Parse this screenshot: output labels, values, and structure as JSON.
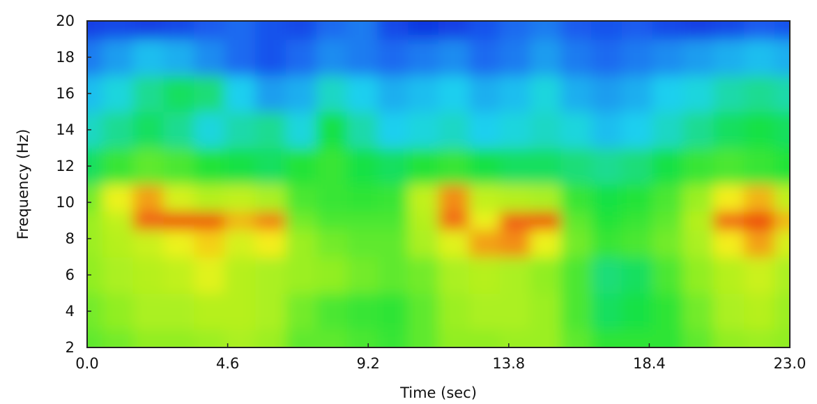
{
  "chart_data": {
    "type": "heatmap",
    "title": "",
    "xlabel": "Time (sec)",
    "ylabel": "Frequency (Hz)",
    "xlim": [
      0,
      23
    ],
    "ylim": [
      2,
      20
    ],
    "x_ticks": [
      0.0,
      4.6,
      9.2,
      13.8,
      18.4,
      23.0
    ],
    "x_tick_labels": [
      "0.0",
      "4.6",
      "9.2",
      "13.8",
      "18.4",
      "23.0"
    ],
    "y_ticks": [
      2,
      4,
      6,
      8,
      10,
      12,
      14,
      16,
      18,
      20
    ],
    "y_tick_labels": [
      "2",
      "4",
      "6",
      "8",
      "10",
      "12",
      "14",
      "16",
      "18",
      "20"
    ],
    "grid": false,
    "colormap": [
      "#0a1fd6",
      "#1a5cf0",
      "#1fd4ef",
      "#18e23a",
      "#a6f020",
      "#f4f21a",
      "#f26a12",
      "#e81010"
    ],
    "x": [
      0,
      1,
      2,
      3,
      4,
      5,
      6,
      7,
      8,
      9,
      10,
      11,
      12,
      13,
      14,
      15,
      16,
      17,
      18,
      19,
      20,
      21,
      22,
      23
    ],
    "y": [
      2,
      4,
      6,
      8,
      9,
      10,
      12,
      14,
      16,
      18,
      20
    ],
    "values": [
      [
        0.5,
        0.52,
        0.55,
        0.55,
        0.56,
        0.58,
        0.56,
        0.5,
        0.5,
        0.48,
        0.46,
        0.5,
        0.55,
        0.55,
        0.56,
        0.56,
        0.5,
        0.45,
        0.45,
        0.45,
        0.5,
        0.55,
        0.56,
        0.55
      ],
      [
        0.52,
        0.55,
        0.58,
        0.58,
        0.6,
        0.6,
        0.58,
        0.52,
        0.48,
        0.46,
        0.45,
        0.5,
        0.56,
        0.58,
        0.58,
        0.56,
        0.48,
        0.4,
        0.42,
        0.45,
        0.52,
        0.58,
        0.6,
        0.56
      ],
      [
        0.55,
        0.58,
        0.6,
        0.62,
        0.68,
        0.6,
        0.58,
        0.56,
        0.55,
        0.52,
        0.5,
        0.52,
        0.58,
        0.6,
        0.58,
        0.55,
        0.48,
        0.38,
        0.4,
        0.48,
        0.55,
        0.6,
        0.64,
        0.58
      ],
      [
        0.56,
        0.6,
        0.64,
        0.7,
        0.75,
        0.66,
        0.72,
        0.56,
        0.52,
        0.5,
        0.5,
        0.58,
        0.68,
        0.8,
        0.82,
        0.7,
        0.52,
        0.46,
        0.48,
        0.52,
        0.58,
        0.72,
        0.8,
        0.66
      ],
      [
        0.56,
        0.62,
        0.88,
        0.92,
        0.9,
        0.78,
        0.84,
        0.52,
        0.48,
        0.48,
        0.48,
        0.6,
        0.86,
        0.7,
        0.88,
        0.9,
        0.5,
        0.44,
        0.46,
        0.5,
        0.6,
        0.88,
        0.92,
        0.78
      ],
      [
        0.52,
        0.7,
        0.8,
        0.66,
        0.6,
        0.62,
        0.58,
        0.48,
        0.46,
        0.45,
        0.46,
        0.62,
        0.82,
        0.62,
        0.6,
        0.58,
        0.46,
        0.42,
        0.44,
        0.48,
        0.56,
        0.72,
        0.78,
        0.62
      ],
      [
        0.4,
        0.46,
        0.5,
        0.48,
        0.44,
        0.42,
        0.4,
        0.44,
        0.46,
        0.42,
        0.4,
        0.44,
        0.46,
        0.42,
        0.4,
        0.4,
        0.38,
        0.36,
        0.38,
        0.42,
        0.46,
        0.48,
        0.46,
        0.44
      ],
      [
        0.32,
        0.36,
        0.4,
        0.36,
        0.3,
        0.34,
        0.36,
        0.3,
        0.42,
        0.34,
        0.28,
        0.3,
        0.32,
        0.28,
        0.3,
        0.32,
        0.3,
        0.26,
        0.28,
        0.32,
        0.36,
        0.4,
        0.42,
        0.4
      ],
      [
        0.26,
        0.3,
        0.36,
        0.4,
        0.38,
        0.28,
        0.22,
        0.24,
        0.32,
        0.28,
        0.24,
        0.26,
        0.28,
        0.24,
        0.26,
        0.3,
        0.24,
        0.22,
        0.24,
        0.28,
        0.3,
        0.34,
        0.36,
        0.34
      ],
      [
        0.18,
        0.22,
        0.26,
        0.24,
        0.2,
        0.16,
        0.12,
        0.16,
        0.2,
        0.18,
        0.16,
        0.18,
        0.2,
        0.16,
        0.18,
        0.22,
        0.18,
        0.16,
        0.18,
        0.2,
        0.22,
        0.24,
        0.26,
        0.24
      ],
      [
        0.08,
        0.1,
        0.08,
        0.1,
        0.14,
        0.16,
        0.12,
        0.1,
        0.16,
        0.18,
        0.1,
        0.06,
        0.08,
        0.12,
        0.16,
        0.18,
        0.14,
        0.12,
        0.14,
        0.1,
        0.08,
        0.1,
        0.14,
        0.12
      ]
    ]
  }
}
